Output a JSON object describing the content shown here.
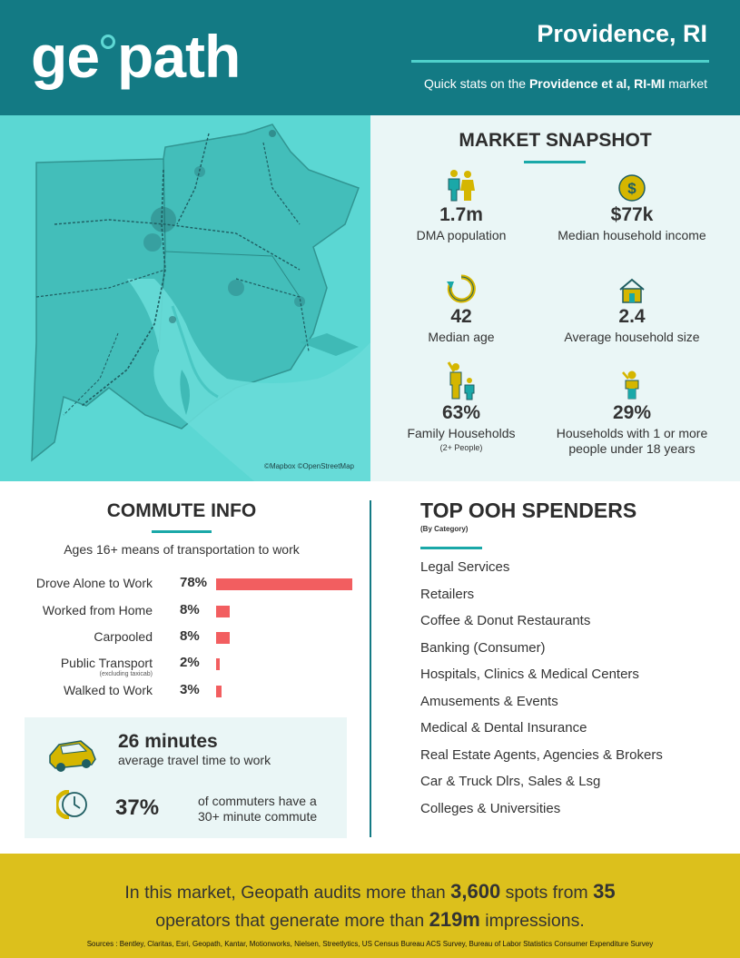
{
  "header": {
    "logo_left": "ge",
    "logo_right": "path",
    "city": "Providence, RI",
    "tagline_pre": "Quick stats on the ",
    "tagline_market": "Providence et al, RI-MI",
    "tagline_post": " market"
  },
  "map": {
    "credit": "©Mapbox ©OpenStreetMap"
  },
  "snapshot": {
    "title": "MARKET SNAPSHOT",
    "stats": [
      {
        "icon": "family-icon",
        "value": "1.7m",
        "label": "DMA population"
      },
      {
        "icon": "dollar-coin-icon",
        "value": "$77k",
        "label": "Median household income"
      },
      {
        "icon": "refresh-cycle-icon",
        "value": "42",
        "label": "Median age"
      },
      {
        "icon": "house-icon",
        "value": "2.4",
        "label": "Average household size"
      },
      {
        "icon": "parent-child-icon",
        "value": "63%",
        "label": "Family Households",
        "sublabel": "(2+ People)"
      },
      {
        "icon": "child-icon",
        "value": "29%",
        "label": "Households with 1 or more people under 18 years"
      }
    ]
  },
  "commute": {
    "title": "COMMUTE INFO",
    "subtitle": "Ages 16+ means of transportation to work",
    "rows": [
      {
        "label": "Drove Alone to Work",
        "pct": "78%",
        "value": 78
      },
      {
        "label": "Worked from Home",
        "pct": "8%",
        "value": 8
      },
      {
        "label": "Carpooled",
        "pct": "8%",
        "value": 8
      },
      {
        "label": "Public Transport",
        "note": "(excluding taxicab)",
        "pct": "2%",
        "value": 2
      },
      {
        "label": "Walked to Work",
        "pct": "3%",
        "value": 3
      }
    ],
    "travel_time": "26 minutes",
    "travel_time_label": "average travel time to work",
    "long_commute_pct": "37%",
    "long_commute_label": "of commuters have a 30+ minute commute"
  },
  "ooh": {
    "title": "TOP OOH SPENDERS",
    "subtitle": "(By Category)",
    "items": [
      "Legal Services",
      "Retailers",
      "Coffee & Donut Restaurants",
      "Banking (Consumer)",
      "Hospitals, Clinics & Medical Centers",
      "Amusements & Events",
      "Medical & Dental Insurance",
      "Real Estate Agents, Agencies & Brokers",
      "Car & Truck Dlrs, Sales & Lsg",
      "Colleges & Universities"
    ]
  },
  "footer": {
    "line1_pre": "In this market, Geopath audits more than ",
    "spots": "3,600",
    "line1_mid": " spots from ",
    "operators": "35",
    "line2_pre": "operators that generate more than ",
    "impressions": "219m",
    "line2_post": " impressions.",
    "sources": "Sources : Bentley, Claritas, Esri, Geopath, Kantar, Motionworks, Nielsen, Streetlytics, US Census Bureau ACS Survey, Bureau of Labor Statistics Consumer Expenditure Survey"
  },
  "colors": {
    "header_teal": "#137a84",
    "map_cyan": "#5bd7d3",
    "accent_teal": "#1aa8a8",
    "bar_red": "#f25e60",
    "footer_gold": "#dcc01c",
    "panel_light": "#eaf6f6"
  }
}
